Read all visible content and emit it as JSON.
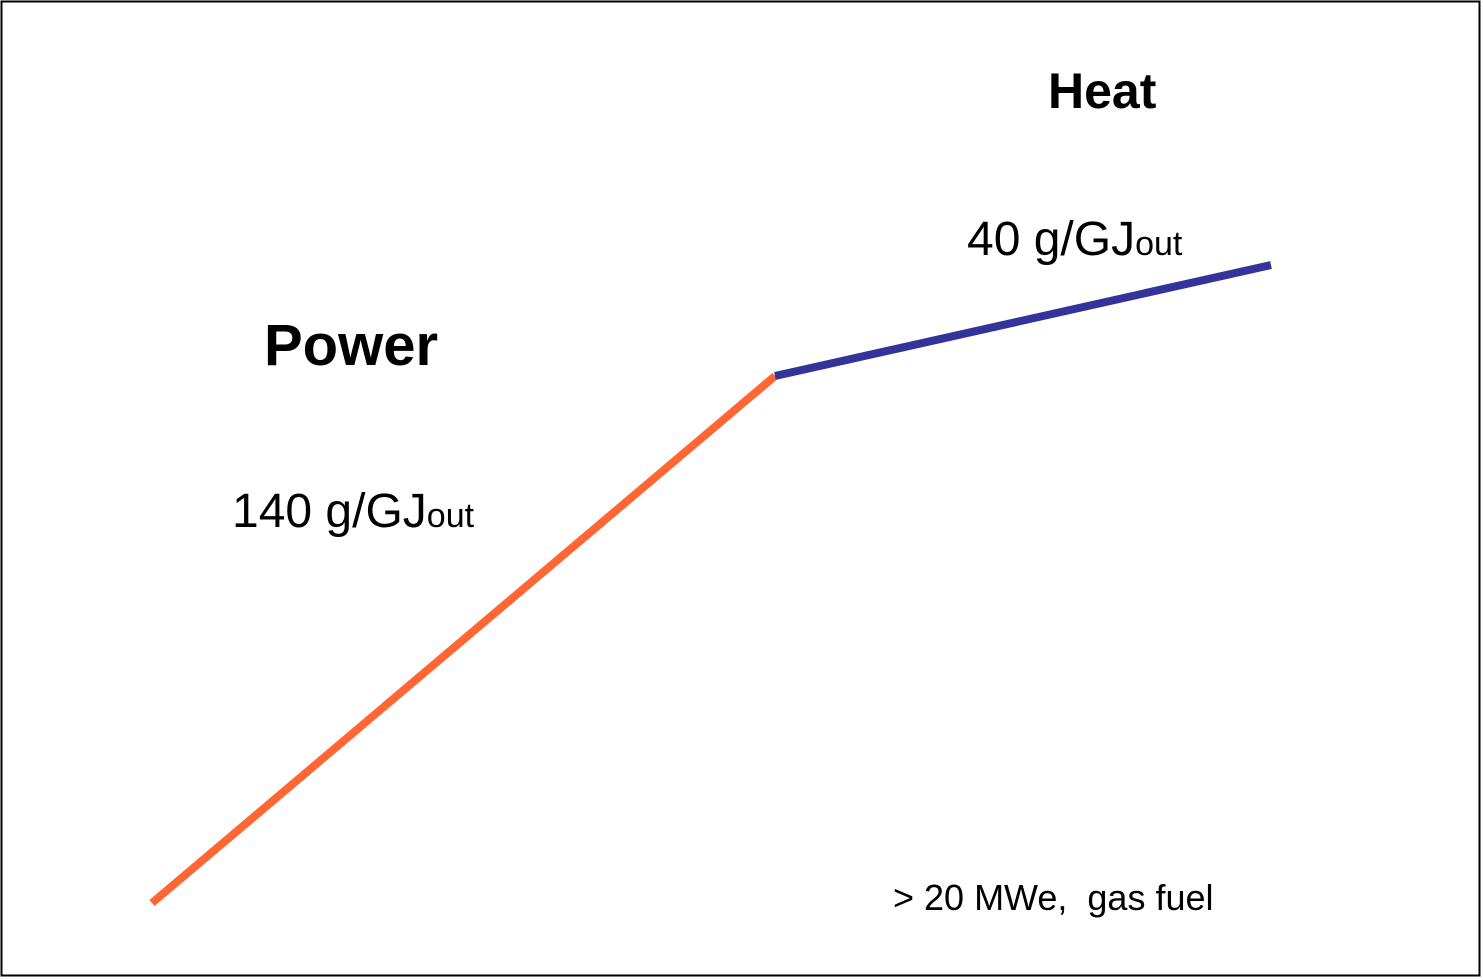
{
  "labels": {
    "heat": "Heat",
    "power": "Power",
    "power_rate": {
      "text": "140 g/GJ",
      "subscript": "out"
    },
    "heat_rate": {
      "text": "40 g/GJ",
      "subscript": "out"
    },
    "note": "> 20 MWe,  gas fuel"
  }
}
